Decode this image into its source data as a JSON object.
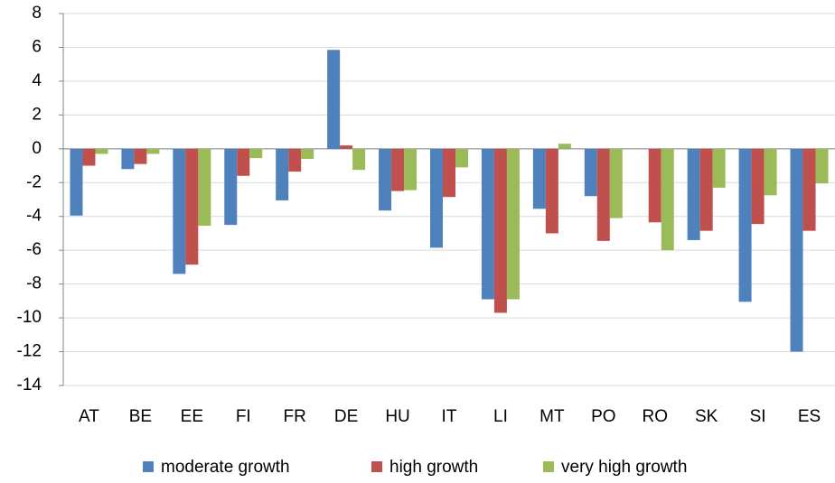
{
  "chart_data": {
    "type": "bar",
    "categories": [
      "AT",
      "BE",
      "EE",
      "FI",
      "FR",
      "DE",
      "HU",
      "IT",
      "LI",
      "MT",
      "PO",
      "RO",
      "SK",
      "SI",
      "ES"
    ],
    "series": [
      {
        "name": "moderate growth",
        "color": "#4f81bd",
        "values": [
          -3.95,
          -1.2,
          -7.4,
          -4.5,
          -3.05,
          5.85,
          -3.65,
          -5.85,
          -8.9,
          -3.55,
          -2.8,
          0,
          -5.4,
          -9.05,
          -12.0
        ]
      },
      {
        "name": "high growth",
        "color": "#c0504d",
        "values": [
          -1.0,
          -0.9,
          -6.85,
          -1.6,
          -1.35,
          0.2,
          -2.5,
          -2.85,
          -9.7,
          -5.0,
          -5.45,
          -4.35,
          -4.85,
          -4.45,
          -4.85
        ]
      },
      {
        "name": "very high growth",
        "color": "#9bbb59",
        "values": [
          -0.3,
          -0.3,
          -4.55,
          -0.55,
          -0.6,
          -1.25,
          -2.45,
          -1.1,
          -8.9,
          0.3,
          -4.1,
          -6.0,
          -2.3,
          -2.75,
          -2.05
        ]
      }
    ],
    "ylim": [
      -14,
      8
    ],
    "yticks": [
      -14,
      -12,
      -10,
      -8,
      -6,
      -4,
      -2,
      0,
      2,
      4,
      6,
      8
    ],
    "grid": true,
    "legend": "bottom"
  }
}
